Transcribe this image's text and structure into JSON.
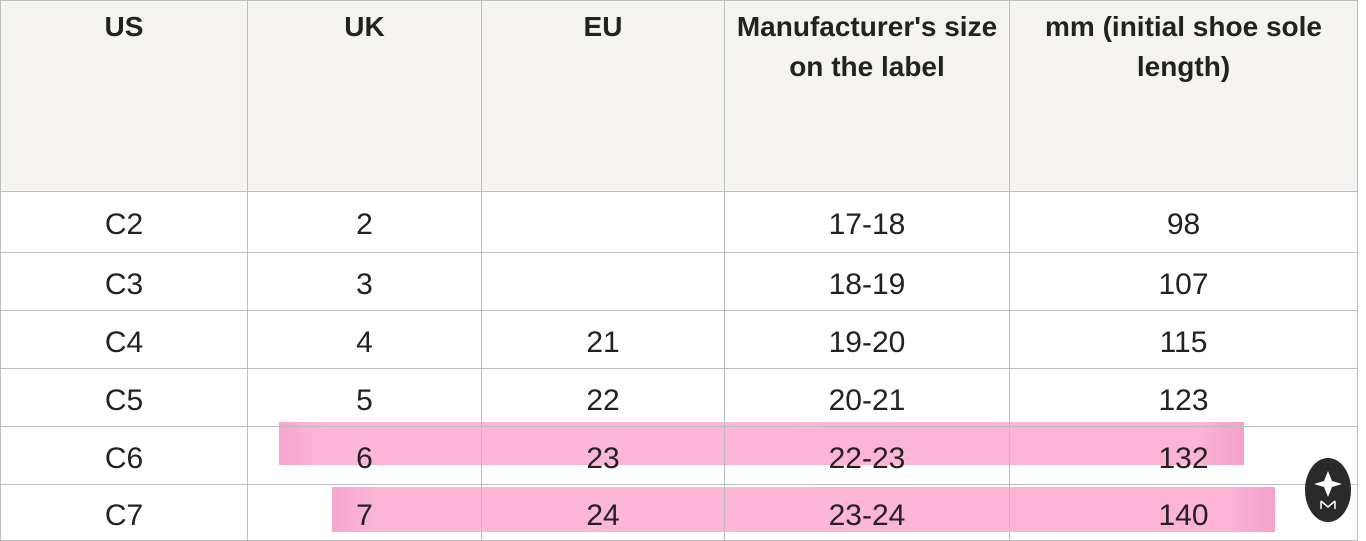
{
  "table": {
    "header": [
      "US",
      "UK",
      "EU",
      "Manufacturer's size on the label",
      "mm (initial shoe sole length)"
    ],
    "rows": [
      [
        "C2",
        2,
        null,
        "17-18",
        98
      ],
      [
        "C3",
        3,
        null,
        "18-19",
        107
      ],
      [
        "C4",
        4,
        21,
        "19-20",
        115
      ],
      [
        "C5",
        5,
        22,
        "20-21",
        123
      ],
      [
        "C6",
        6,
        23,
        "22-23",
        132
      ],
      [
        "C7",
        7,
        24,
        "23-24",
        140
      ]
    ]
  }
}
